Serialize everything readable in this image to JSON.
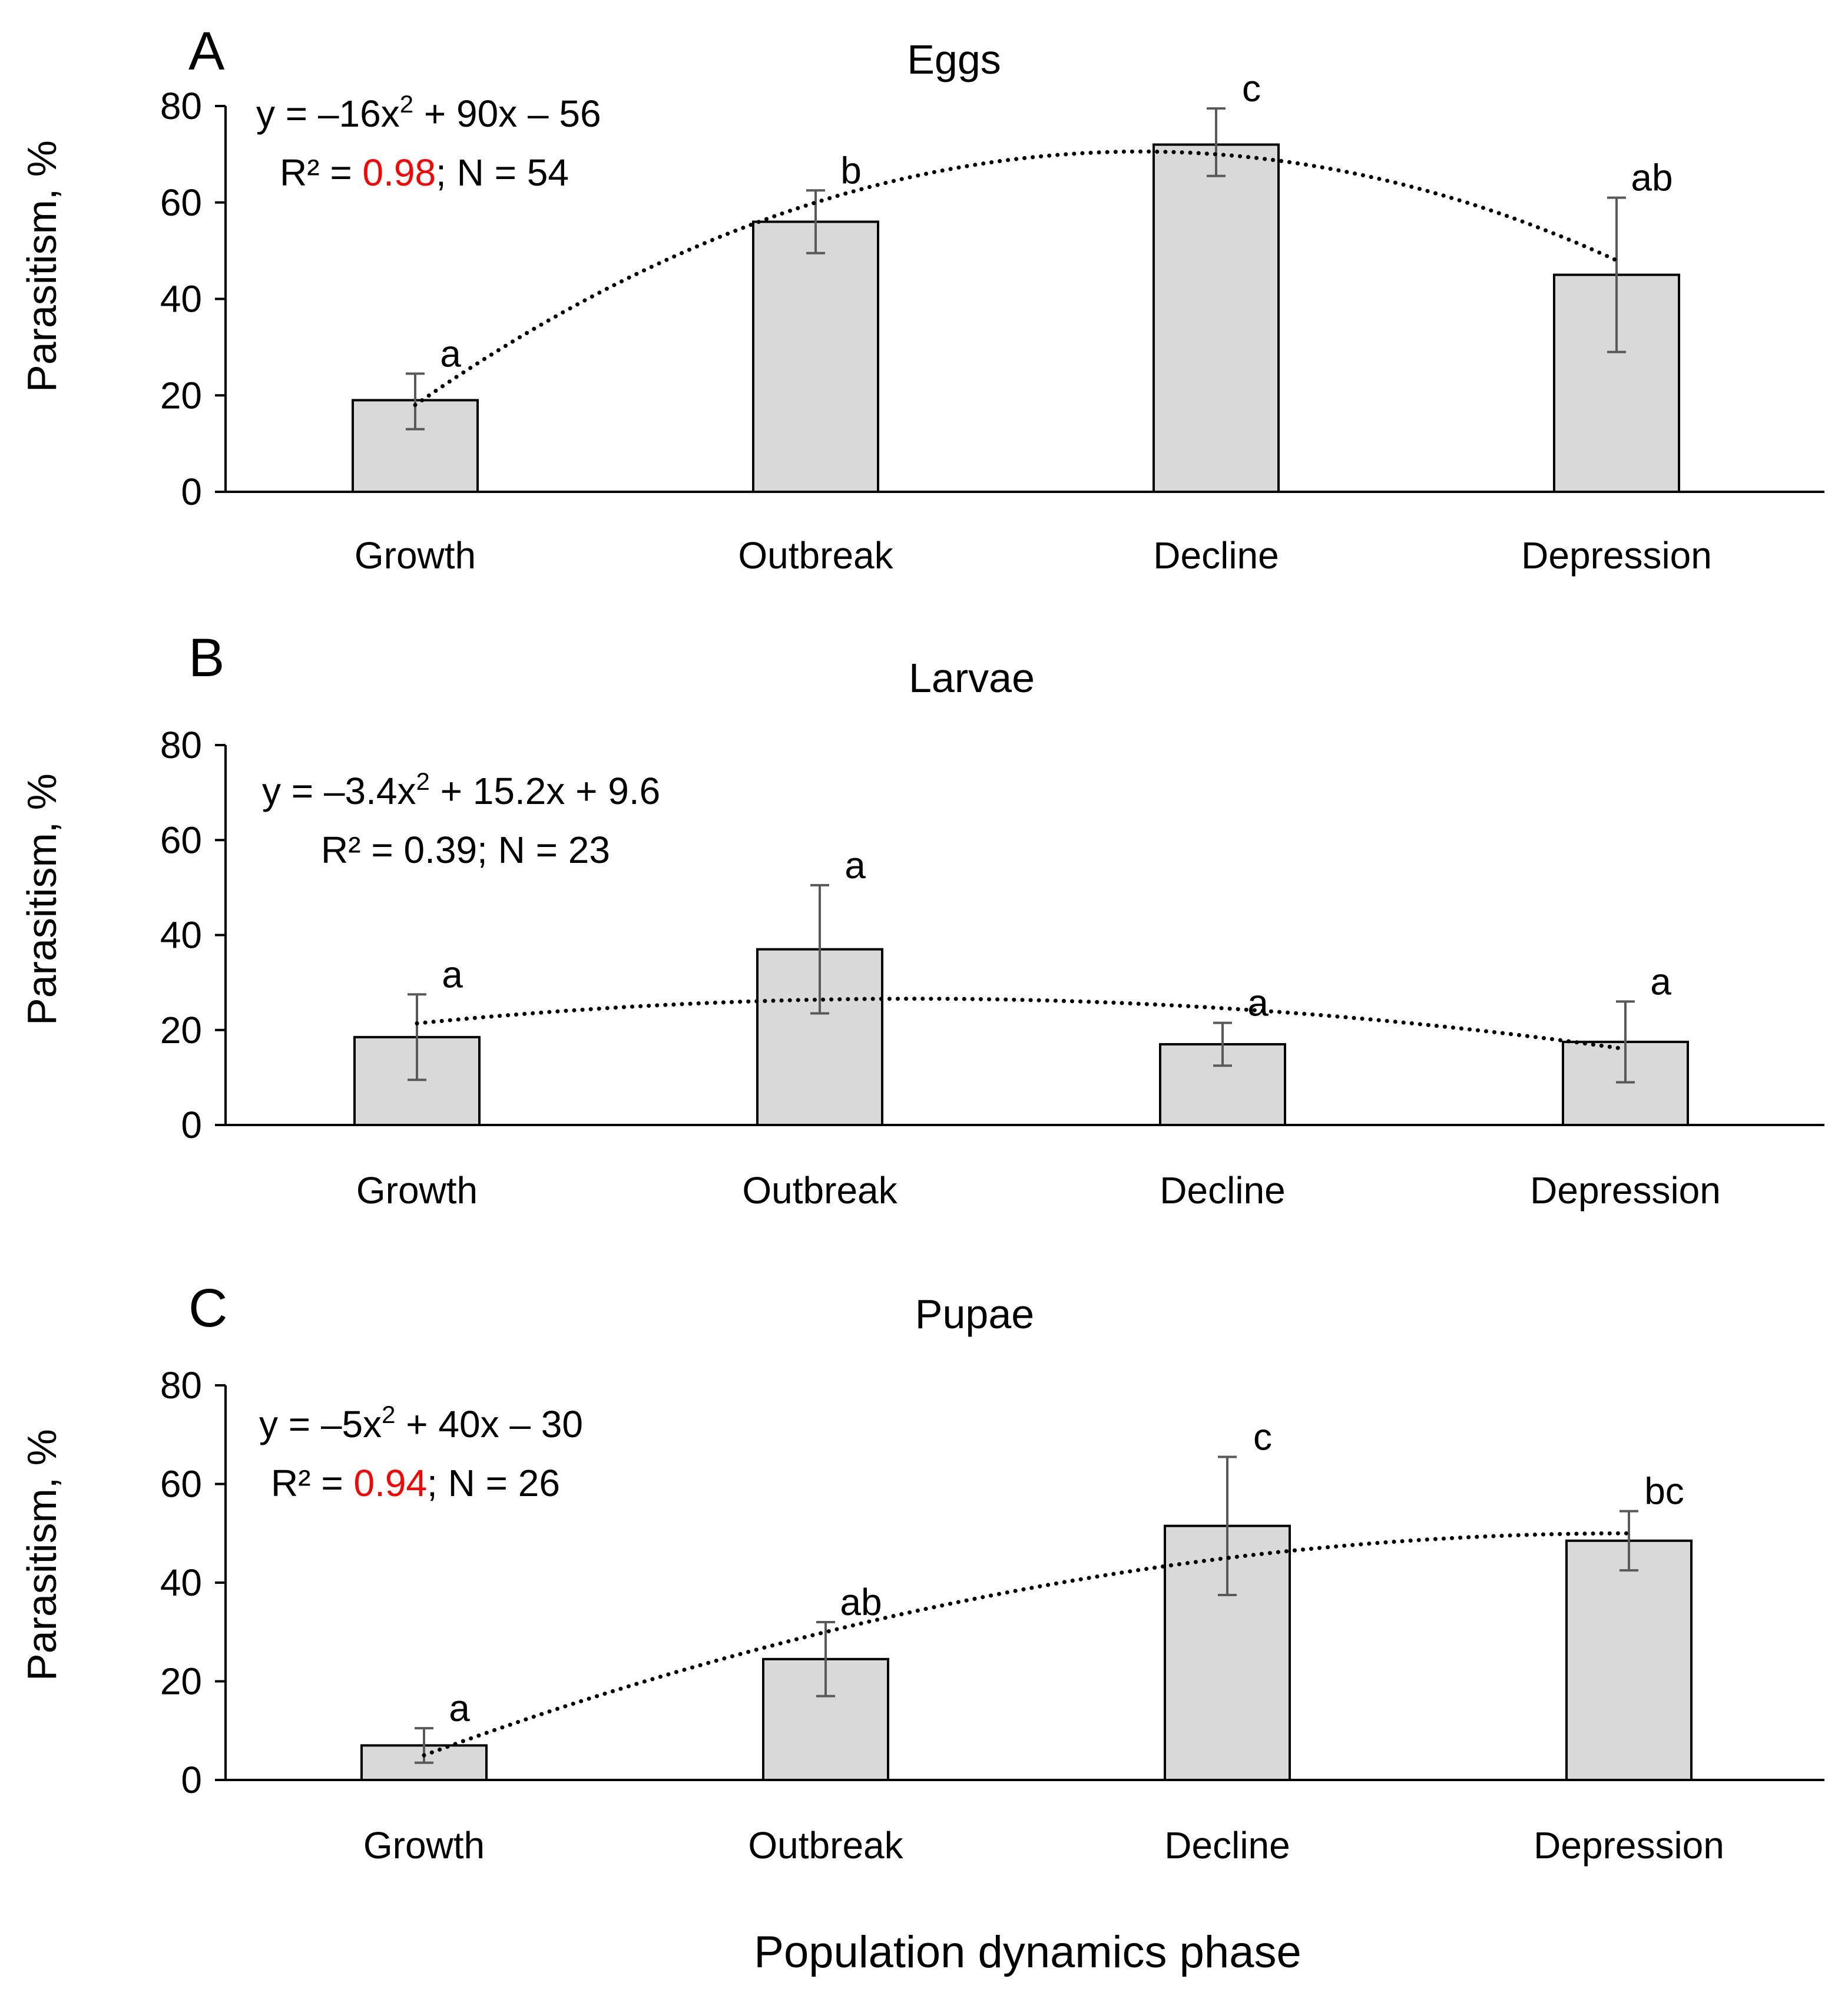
{
  "x_axis_title": "Population dynamics phase",
  "y_axis_title": "Parasitism, %",
  "colors": {
    "bar_fill": "#d9d9d9",
    "highlight": "#ff0000",
    "error_bar": "#595959"
  },
  "chart_data": [
    {
      "type": "bar",
      "panel": "A",
      "title": "Eggs",
      "categories": [
        "Growth",
        "Outbreak",
        "Decline",
        "Depression"
      ],
      "values": [
        19,
        56,
        72,
        45
      ],
      "errors": [
        [
          13,
          24.5
        ],
        [
          49.5,
          62.5
        ],
        [
          65.5,
          79.5
        ],
        [
          29,
          61
        ]
      ],
      "group_letters": [
        "a",
        "b",
        "c",
        "ab"
      ],
      "ylim": [
        0,
        80
      ],
      "yticks": [
        "0",
        "20",
        "40",
        "60",
        "80"
      ],
      "trend": {
        "a": -16,
        "b": 90,
        "c": -56
      },
      "equation": {
        "lead": "y =",
        "line1": "–16x",
        "sup": "2",
        "rest": " + 90x – 56",
        "r2_label": "R² = ",
        "r2": "0.98",
        "r2_highlight": true,
        "n_text": "; N =  54"
      }
    },
    {
      "type": "bar",
      "panel": "B",
      "title": "Larvae",
      "categories": [
        "Growth",
        "Outbreak",
        "Decline",
        "Depression"
      ],
      "values": [
        18.5,
        37,
        17,
        17.5
      ],
      "errors": [
        [
          9.5,
          27.5
        ],
        [
          23.5,
          50.5
        ],
        [
          12.5,
          21.5
        ],
        [
          9,
          26
        ]
      ],
      "group_letters": [
        "a",
        "a",
        "a",
        "a"
      ],
      "ylim": [
        0,
        80
      ],
      "yticks": [
        "0",
        "20",
        "40",
        "60",
        "80"
      ],
      "trend": {
        "a": -3.4,
        "b": 15.2,
        "c": 9.6
      },
      "equation": {
        "lead": "y =",
        "line1": "–3.4x",
        "sup": "2",
        "rest": " + 15.2x + 9.6",
        "r2_label": "R² = ",
        "r2": "0.39",
        "r2_highlight": false,
        "n_text": "; N = 23"
      }
    },
    {
      "type": "bar",
      "panel": "C",
      "title": "Pupae",
      "categories": [
        "Growth",
        "Outbreak",
        "Decline",
        "Depression"
      ],
      "values": [
        7,
        24.5,
        51.5,
        48.5
      ],
      "errors": [
        [
          3.5,
          10.5
        ],
        [
          17,
          32
        ],
        [
          37.5,
          65.5
        ],
        [
          42.5,
          54.5
        ]
      ],
      "group_letters": [
        "a",
        "ab",
        "c",
        "bc"
      ],
      "ylim": [
        0,
        80
      ],
      "yticks": [
        "0",
        "20",
        "40",
        "60",
        "80"
      ],
      "trend": {
        "a": -5,
        "b": 40,
        "c": -30
      },
      "equation": {
        "lead": "y =",
        "line1": "–5x",
        "sup": "2",
        "rest": " + 40x – 30",
        "r2_label": "R² = ",
        "r2": "0.94",
        "r2_highlight": true,
        "n_text": "; N = 26"
      }
    }
  ]
}
